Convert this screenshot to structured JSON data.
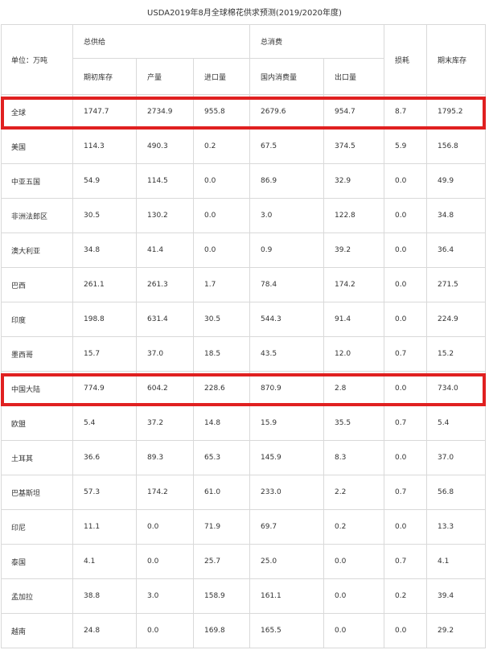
{
  "title": "USDA2019年8月全球棉花供求预测(2019/2020年度)",
  "header": {
    "unit_label": "单位：万吨",
    "group_supply": "总供给",
    "group_consumption": "总消费",
    "loss": "损耗",
    "ending_stock": "期末库存",
    "sub": [
      "期初库存",
      "产量",
      "进口量",
      "国内消费量",
      "出口量"
    ]
  },
  "rows": [
    {
      "name": "全球",
      "values": [
        "1747.7",
        "2734.9",
        "955.8",
        "2679.6",
        "954.7",
        "8.7",
        "1795.2"
      ],
      "highlight": true
    },
    {
      "name": "美国",
      "values": [
        "114.3",
        "490.3",
        "0.2",
        "67.5",
        "374.5",
        "5.9",
        "156.8"
      ]
    },
    {
      "name": "中亚五国",
      "values": [
        "54.9",
        "114.5",
        "0.0",
        "86.9",
        "32.9",
        "0.0",
        "49.9"
      ]
    },
    {
      "name": "非洲法郎区",
      "values": [
        "30.5",
        "130.2",
        "0.0",
        "3.0",
        "122.8",
        "0.0",
        "34.8"
      ]
    },
    {
      "name": "澳大利亚",
      "values": [
        "34.8",
        "41.4",
        "0.0",
        "0.9",
        "39.2",
        "0.0",
        "36.4"
      ]
    },
    {
      "name": "巴西",
      "values": [
        "261.1",
        "261.3",
        "1.7",
        "78.4",
        "174.2",
        "0.0",
        "271.5"
      ]
    },
    {
      "name": "印度",
      "values": [
        "198.8",
        "631.4",
        "30.5",
        "544.3",
        "91.4",
        "0.0",
        "224.9"
      ]
    },
    {
      "name": "墨西哥",
      "values": [
        "15.7",
        "37.0",
        "18.5",
        "43.5",
        "12.0",
        "0.7",
        "15.2"
      ]
    },
    {
      "name": "中国大陆",
      "values": [
        "774.9",
        "604.2",
        "228.6",
        "870.9",
        "2.8",
        "0.0",
        "734.0"
      ],
      "highlight": true
    },
    {
      "name": "欧盟",
      "values": [
        "5.4",
        "37.2",
        "14.8",
        "15.9",
        "35.5",
        "0.7",
        "5.4"
      ]
    },
    {
      "name": "土耳其",
      "values": [
        "36.6",
        "89.3",
        "65.3",
        "145.9",
        "8.3",
        "0.0",
        "37.0"
      ]
    },
    {
      "name": "巴基斯坦",
      "values": [
        "57.3",
        "174.2",
        "61.0",
        "233.0",
        "2.2",
        "0.7",
        "56.8"
      ]
    },
    {
      "name": "印尼",
      "values": [
        "11.1",
        "0.0",
        "71.9",
        "69.7",
        "0.2",
        "0.0",
        "13.3"
      ]
    },
    {
      "name": "泰国",
      "values": [
        "4.1",
        "0.0",
        "25.7",
        "25.0",
        "0.0",
        "0.7",
        "4.1"
      ]
    },
    {
      "name": "孟加拉",
      "values": [
        "38.8",
        "3.0",
        "158.9",
        "161.1",
        "0.0",
        "0.2",
        "39.4"
      ]
    },
    {
      "name": "越南",
      "values": [
        "24.8",
        "0.0",
        "169.8",
        "165.5",
        "0.0",
        "0.0",
        "29.2"
      ]
    }
  ],
  "colors": {
    "highlight": "#e02020",
    "border": "#d9d9d9"
  }
}
